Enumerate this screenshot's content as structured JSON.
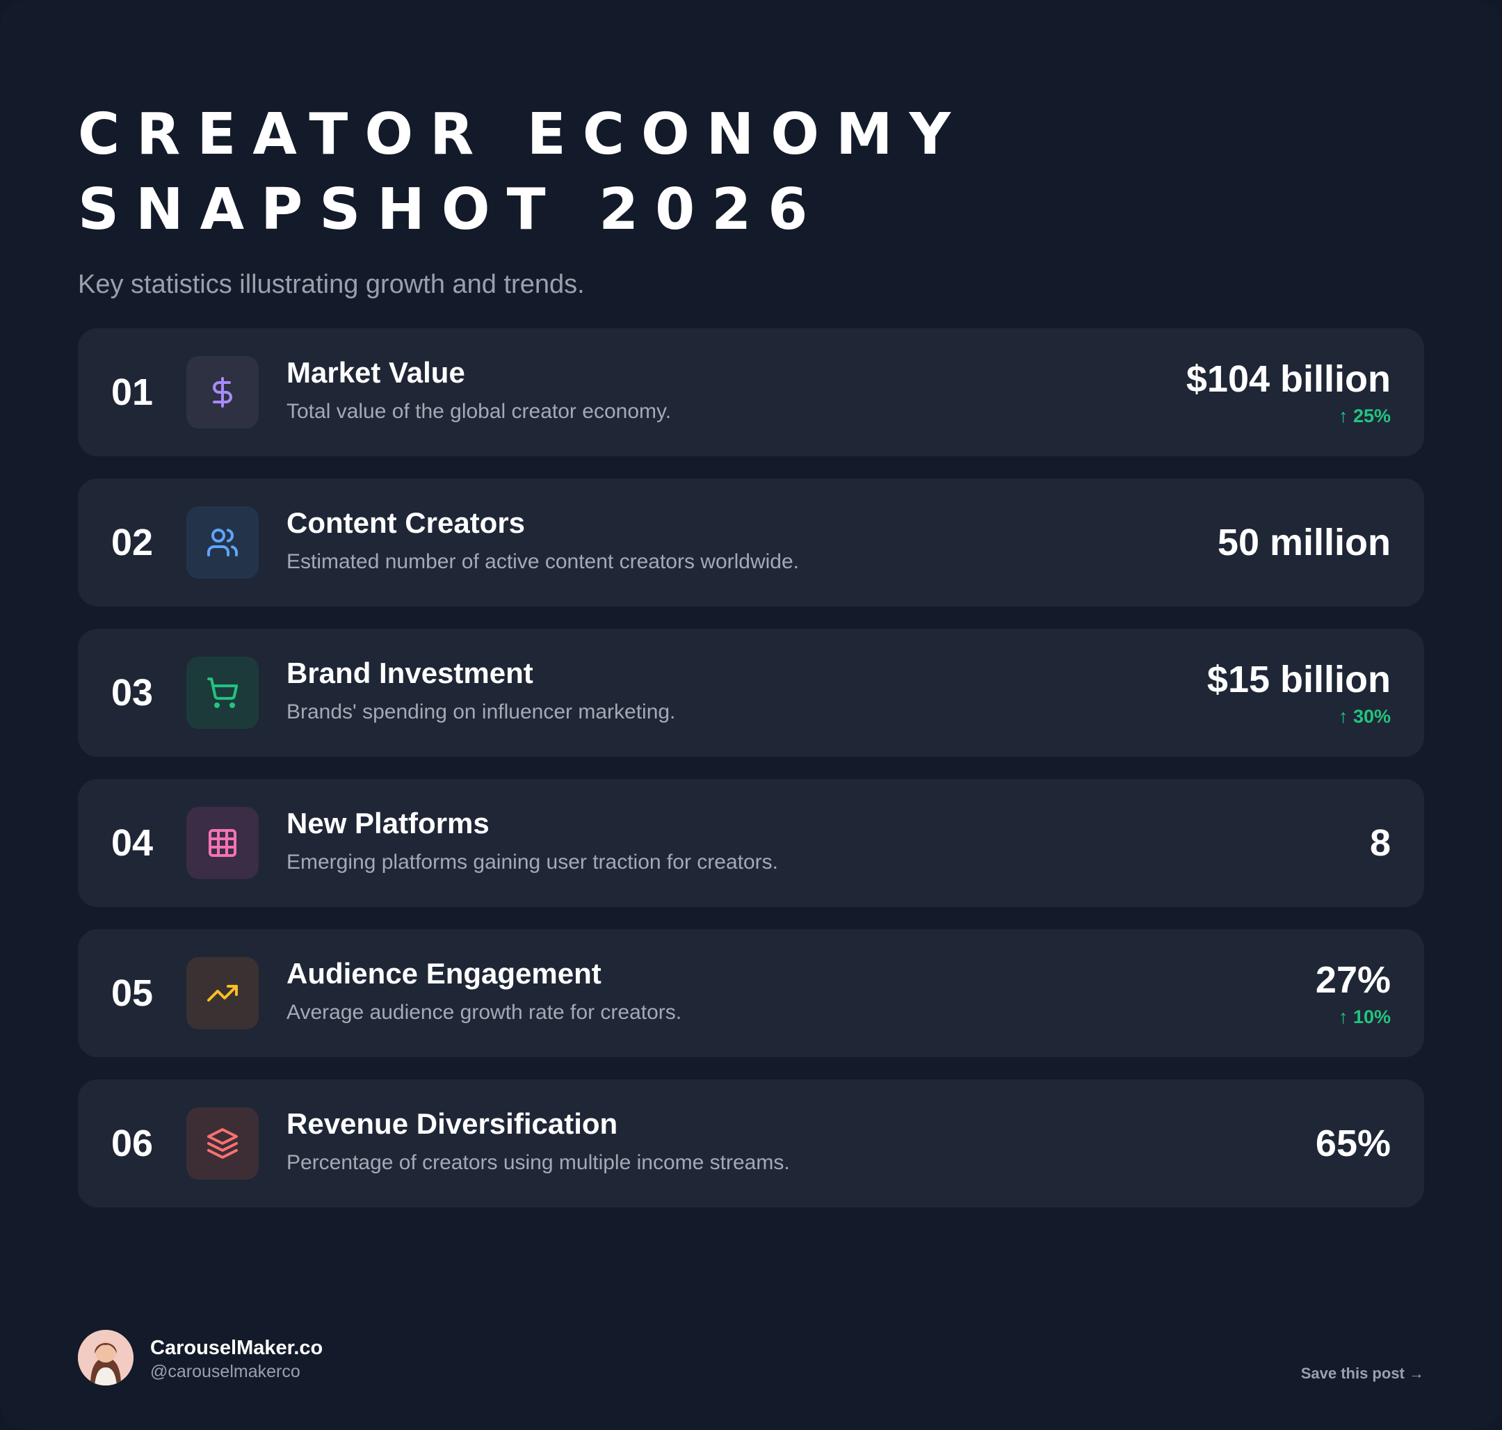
{
  "header": {
    "title_line1": "Creator Economy",
    "title_line2": "Snapshot 2026",
    "subtitle": "Key statistics illustrating growth and trends."
  },
  "stats": [
    {
      "number": "01",
      "icon": "dollar-icon",
      "icon_color": "#a78bfa",
      "icon_bg": "#2e3142",
      "title": "Market Value",
      "description": "Total value of the global creator economy.",
      "value": "$104  billion",
      "change": "↑ 25%"
    },
    {
      "number": "02",
      "icon": "users-icon",
      "icon_color": "#60a5fa",
      "icon_bg": "#23344a",
      "title": "Content Creators",
      "description": "Estimated number of active content creators worldwide.",
      "value": "50 million",
      "change": ""
    },
    {
      "number": "03",
      "icon": "shopping-cart-icon",
      "icon_color": "#22c47f",
      "icon_bg": "#1d3a3a",
      "title": "Brand Investment",
      "description": "Brands' spending on influencer marketing.",
      "value": "$15  billion",
      "change": "↑ 30%"
    },
    {
      "number": "04",
      "icon": "grid-icon",
      "icon_color": "#f472b6",
      "icon_bg": "#3a2d45",
      "title": "New Platforms",
      "description": "Emerging platforms gaining user traction for creators.",
      "value": "8",
      "change": ""
    },
    {
      "number": "05",
      "icon": "trending-up-icon",
      "icon_color": "#fbbf24",
      "icon_bg": "#3a3232",
      "title": "Audience Engagement",
      "description": "Average audience growth rate for creators.",
      "value": "27%",
      "change": "↑ 10%"
    },
    {
      "number": "06",
      "icon": "layers-icon",
      "icon_color": "#f87171",
      "icon_bg": "#3d2e36",
      "title": "Revenue Diversification",
      "description": "Percentage of creators using multiple income streams.",
      "value": "65%",
      "change": ""
    }
  ],
  "footer": {
    "brand_name": "CarouselMaker.co",
    "handle": "@carouselmakerco",
    "save_label": "Save this post →"
  },
  "colors": {
    "background": "#131a29",
    "card": "#1f2636",
    "accent_green": "#22c47f"
  }
}
